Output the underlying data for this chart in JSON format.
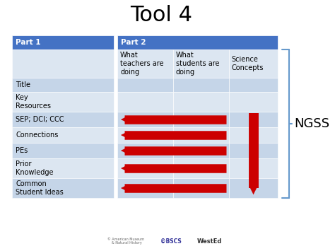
{
  "title": "Tool 4",
  "title_fontsize": 22,
  "background_color": "#ffffff",
  "header_color": "#4472c4",
  "header_text_color": "#ffffff",
  "row_color_light": "#dce6f1",
  "row_color_alt": "#c5d5e8",
  "part1_label": "Part 1",
  "part2_label": "Part 2",
  "part1_rows": [
    "Title",
    "Key\nResources",
    "SEP; DCI; CCC",
    "Connections",
    "PEs",
    "Prior\nKnowledge",
    "Common\nStudent Ideas"
  ],
  "part2_headers": [
    "What\nteachers are\ndoing",
    "What\nstudents are\ndoing",
    "Science\nConcepts"
  ],
  "arrow_color": "#cc0000",
  "ngss_label": "NGSS",
  "ngss_fontsize": 13,
  "bracket_color": "#6699cc",
  "font_size_cell": 7,
  "font_size_header": 7.5
}
